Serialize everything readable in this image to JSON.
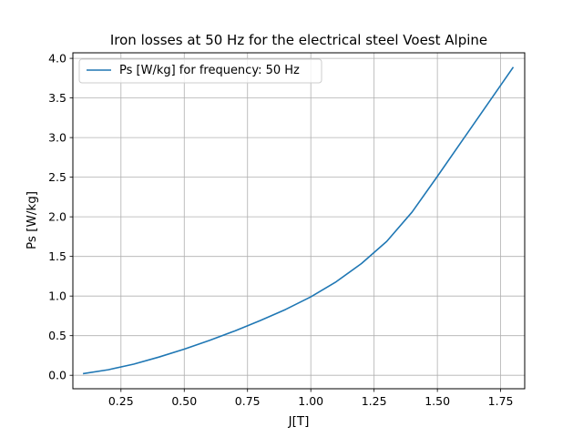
{
  "chart_data": {
    "type": "line",
    "title": "Iron losses at 50 Hz for the electrical steel Voest Alpine",
    "xlabel": "J[T]",
    "ylabel": "Ps [W/kg]",
    "xlim": [
      0.06,
      1.845
    ],
    "ylim": [
      -0.17,
      4.07
    ],
    "xticks": [
      0.25,
      0.5,
      0.75,
      1.0,
      1.25,
      1.5,
      1.75
    ],
    "xtick_labels": [
      "0.25",
      "0.50",
      "0.75",
      "1.00",
      "1.25",
      "1.50",
      "1.75"
    ],
    "yticks": [
      0.0,
      0.5,
      1.0,
      1.5,
      2.0,
      2.5,
      3.0,
      3.5,
      4.0
    ],
    "ytick_labels": [
      "0.0",
      "0.5",
      "1.0",
      "1.5",
      "2.0",
      "2.5",
      "3.0",
      "3.5",
      "4.0"
    ],
    "grid": true,
    "legend_position": "top-left",
    "series": [
      {
        "name": "Ps [W/kg] for frequency: 50 Hz",
        "color": "#1f77b4",
        "x": [
          0.1,
          0.2,
          0.3,
          0.4,
          0.5,
          0.6,
          0.7,
          0.8,
          0.9,
          1.0,
          1.1,
          1.2,
          1.3,
          1.4,
          1.5,
          1.6,
          1.7,
          1.8
        ],
        "y": [
          0.02,
          0.07,
          0.14,
          0.23,
          0.33,
          0.44,
          0.56,
          0.69,
          0.83,
          0.99,
          1.18,
          1.41,
          1.69,
          2.06,
          2.51,
          2.97,
          3.43,
          3.89
        ]
      }
    ]
  }
}
